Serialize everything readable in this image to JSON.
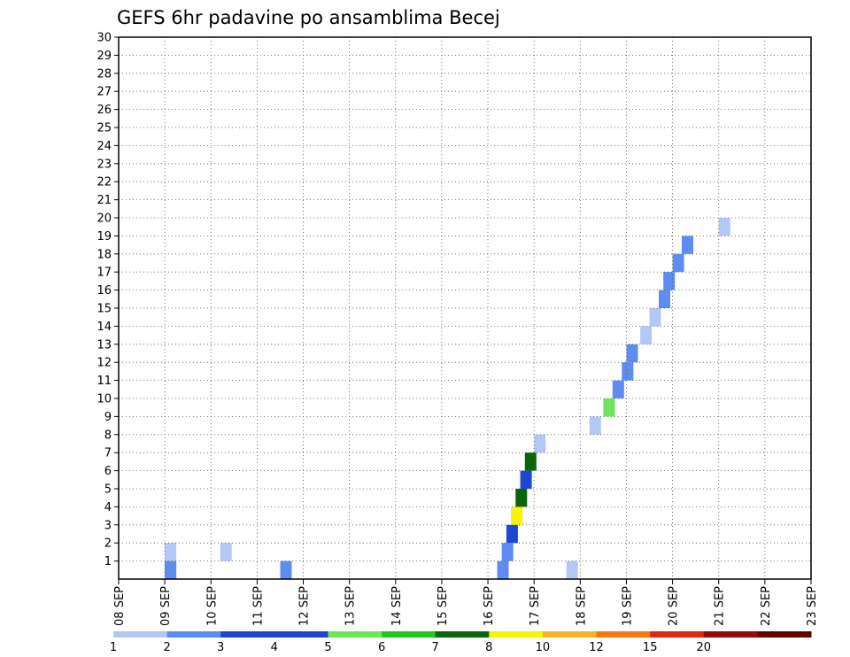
{
  "chart_data": {
    "type": "heatmap",
    "title": "GEFS 6hr padavine po ansamblima Becej",
    "x_ticks": [
      "08 SEP",
      "09 SEP",
      "10 SEP",
      "11 SEP",
      "12 SEP",
      "13 SEP",
      "14 SEP",
      "15 SEP",
      "16 SEP",
      "17 SEP",
      "18 SEP",
      "19 SEP",
      "20 SEP",
      "21 SEP",
      "22 SEP",
      "23 SEP"
    ],
    "y_ticks": [
      "1",
      "2",
      "3",
      "4",
      "5",
      "6",
      "7",
      "8",
      "9",
      "10",
      "11",
      "12",
      "13",
      "14",
      "15",
      "16",
      "17",
      "18",
      "19",
      "20",
      "21",
      "22",
      "23",
      "24",
      "25",
      "26",
      "27",
      "28",
      "29",
      "30"
    ],
    "x_range_days": [
      8,
      23
    ],
    "y_range": [
      0,
      30
    ],
    "timestep_hours": 6,
    "grid": true,
    "legend": {
      "position": "bottom",
      "labels": [
        "1",
        "2",
        "3",
        "4",
        "5",
        "6",
        "7",
        "8",
        "10",
        "12",
        "15",
        "20"
      ],
      "colors": [
        "#b4c8f5",
        "#5f8cf0",
        "#1e46d2",
        "#1e46d2",
        "#6ee65a",
        "#1ec81e",
        "#0a640a",
        "#f5f500",
        "#f5b428",
        "#f57814",
        "#dc2814",
        "#960a0a",
        "#640000"
      ]
    },
    "member_cells": [
      [
        1,
        9.0,
        1
      ],
      [
        1,
        9.0,
        2
      ],
      [
        2,
        9.0,
        1
      ],
      [
        2,
        10.2,
        1
      ],
      [
        1,
        11.5,
        2
      ],
      [
        1,
        16.2,
        2
      ],
      [
        1,
        17.7,
        1
      ],
      [
        2,
        16.3,
        2
      ],
      [
        3,
        16.4,
        4
      ],
      [
        4,
        16.5,
        8
      ],
      [
        5,
        16.6,
        7
      ],
      [
        6,
        16.7,
        4
      ],
      [
        7,
        16.8,
        7
      ],
      [
        8,
        17.0,
        1
      ],
      [
        9,
        18.2,
        1
      ],
      [
        10,
        18.5,
        5
      ],
      [
        11,
        18.7,
        2
      ],
      [
        12,
        18.9,
        2
      ],
      [
        13,
        19.0,
        2
      ],
      [
        14,
        19.3,
        1
      ],
      [
        15,
        19.5,
        1
      ],
      [
        16,
        19.7,
        2
      ],
      [
        17,
        19.8,
        2
      ],
      [
        18,
        20.0,
        2
      ],
      [
        19,
        20.2,
        2
      ],
      [
        20,
        21.0,
        1
      ]
    ]
  }
}
